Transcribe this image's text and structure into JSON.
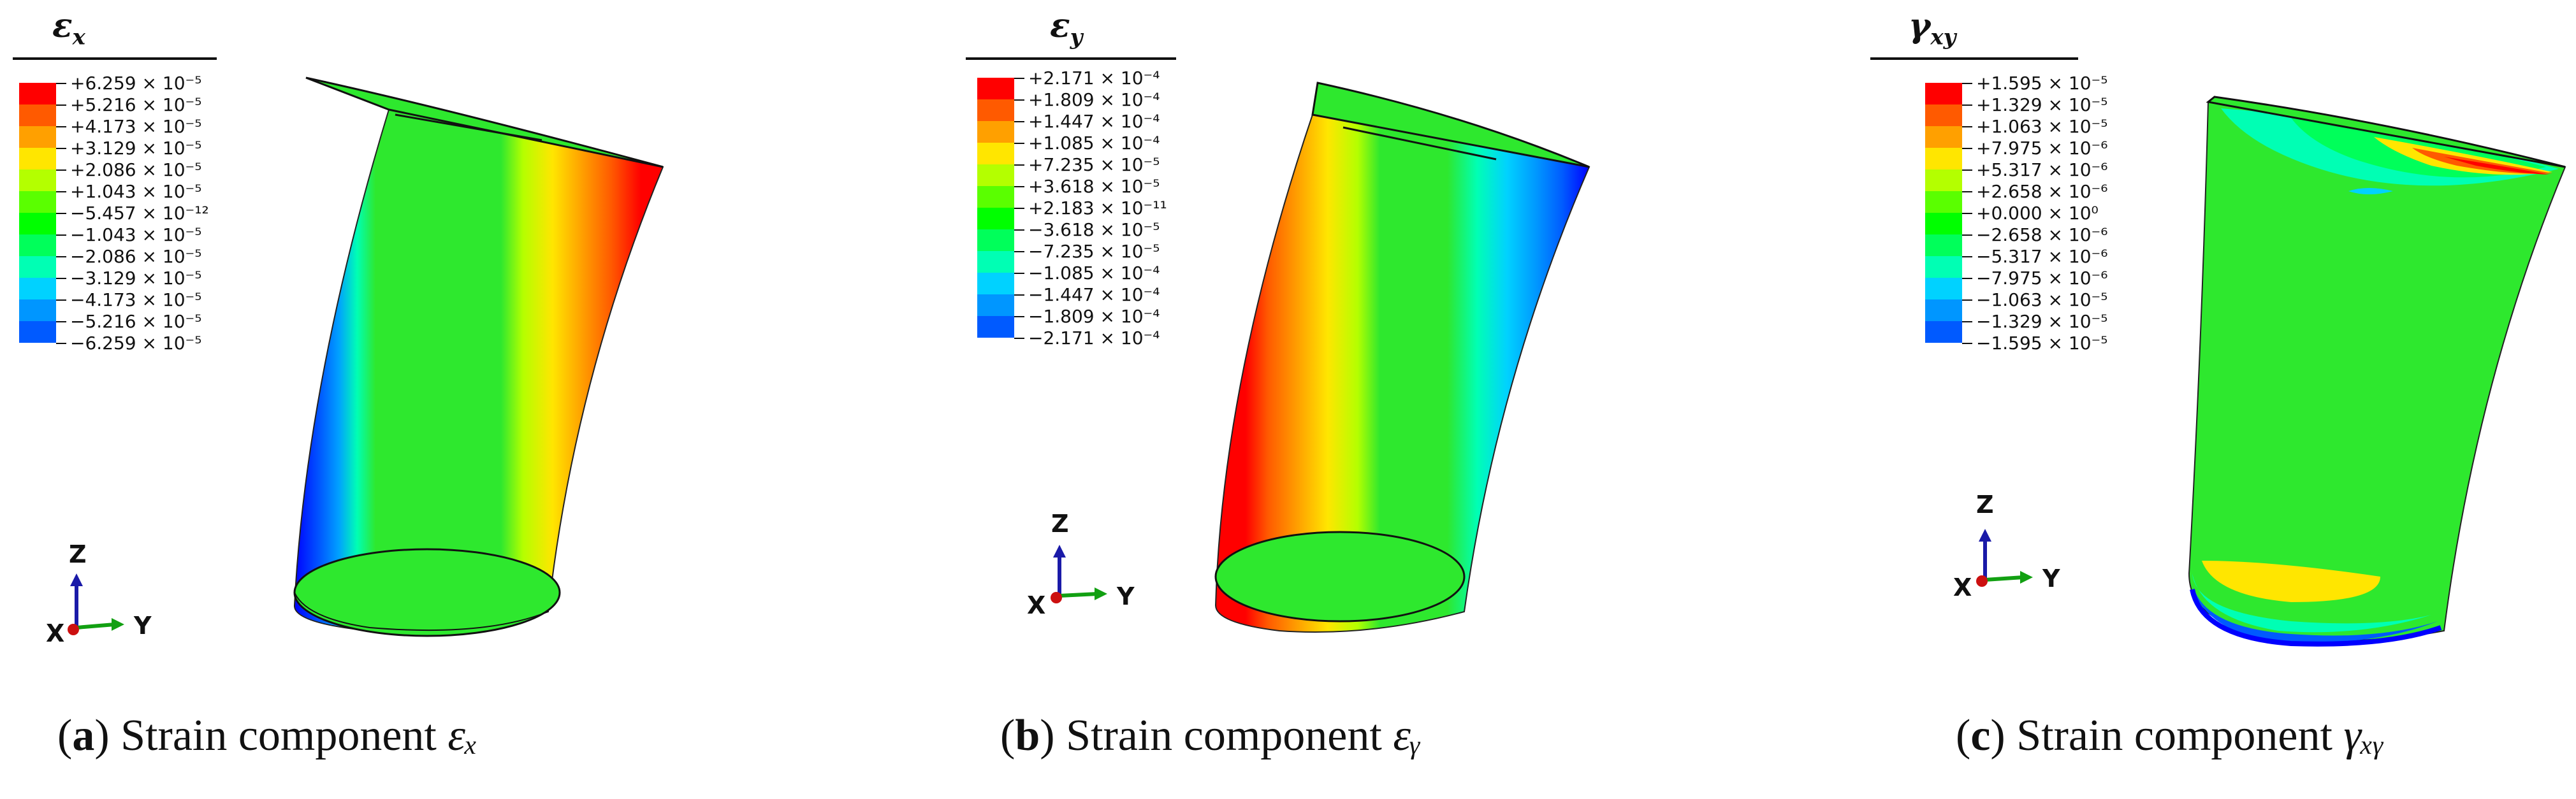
{
  "panels": [
    {
      "legend_title": "ε",
      "legend_title_sub": "x",
      "legend_labels": [
        "+6.259 × 10⁻⁵",
        "+5.216 × 10⁻⁵",
        "+4.173 × 10⁻⁵",
        "+3.129 × 10⁻⁵",
        "+2.086 × 10⁻⁵",
        "+1.043 × 10⁻⁵",
        "−5.457 × 10⁻¹²",
        "−1.043 × 10⁻⁵",
        "−2.086 × 10⁻⁵",
        "−3.129 × 10⁻⁵",
        "−4.173 × 10⁻⁵",
        "−5.216 × 10⁻⁵",
        "−6.259 × 10⁻⁵"
      ],
      "axis_z": "Z",
      "axis_y": "Y",
      "axis_x": "X",
      "caption_tag": "a",
      "caption_text": " Strain component ",
      "caption_sym": "εₓ"
    },
    {
      "legend_title": "ε",
      "legend_title_sub": "y",
      "legend_labels": [
        "+2.171 × 10⁻⁴",
        "+1.809 × 10⁻⁴",
        "+1.447 × 10⁻⁴",
        "+1.085 × 10⁻⁴",
        "+7.235 × 10⁻⁵",
        "+3.618 × 10⁻⁵",
        "+2.183 × 10⁻¹¹",
        "−3.618 × 10⁻⁵",
        "−7.235 × 10⁻⁵",
        "−1.085 × 10⁻⁴",
        "−1.447 × 10⁻⁴",
        "−1.809 × 10⁻⁴",
        "−2.171 × 10⁻⁴"
      ],
      "axis_z": "Z",
      "axis_y": "Y",
      "axis_x": "X",
      "caption_tag": "b",
      "caption_text": " Strain component ",
      "caption_sym": "εᵧ"
    },
    {
      "legend_title": "γ",
      "legend_title_sub": "xy",
      "legend_labels": [
        "+1.595 × 10⁻⁵",
        "+1.329 × 10⁻⁵",
        "+1.063 × 10⁻⁵",
        "+7.975 × 10⁻⁶",
        "+5.317 × 10⁻⁶",
        "+2.658 × 10⁻⁶",
        "+0.000 × 10⁰",
        "−2.658 × 10⁻⁶",
        "−5.317 × 10⁻⁶",
        "−7.975 × 10⁻⁶",
        "−1.063 × 10⁻⁵",
        "−1.329 × 10⁻⁵",
        "−1.595 × 10⁻⁵"
      ],
      "axis_z": "Z",
      "axis_y": "Y",
      "axis_x": "X",
      "caption_tag": "c",
      "caption_text": " Strain component ",
      "caption_sym": "γₓᵧ"
    }
  ],
  "colors": {
    "scale": [
      "#ff0000",
      "#ff5a00",
      "#ffa000",
      "#ffe600",
      "#b4ff00",
      "#5aff00",
      "#00ff00",
      "#00ff5a",
      "#00ffb4",
      "#00d2ff",
      "#0096ff",
      "#005aff",
      "#0000ff"
    ],
    "body_green": "#2ee82e",
    "axis_z": "#1a1aa8",
    "axis_y": "#12a012",
    "axis_x": "#cc1010"
  }
}
